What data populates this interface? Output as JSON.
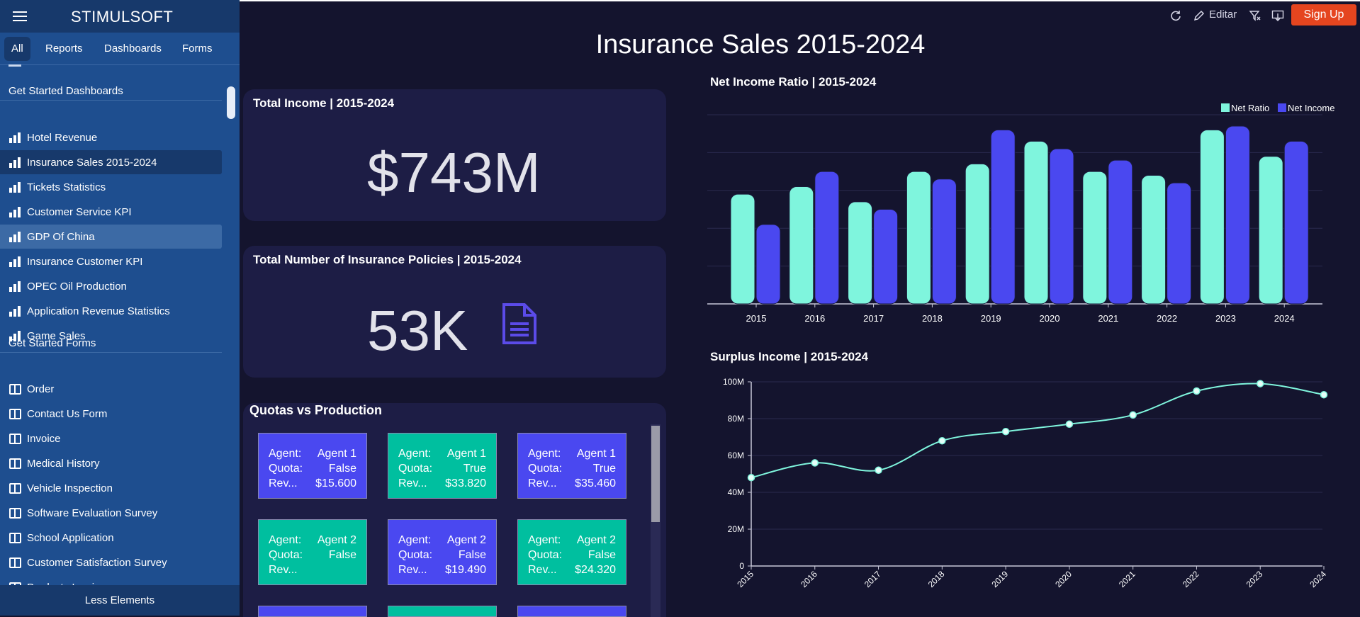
{
  "brand": "STIMULSOFT",
  "sidebar": {
    "tabs": [
      {
        "label": "All"
      },
      {
        "label": "Reports"
      },
      {
        "label": "Dashboards"
      },
      {
        "label": "Forms"
      }
    ],
    "dashboards_heading": "Get Started Dashboards",
    "dashboards": [
      {
        "label": "Hotel Revenue"
      },
      {
        "label": "Insurance Sales 2015-2024"
      },
      {
        "label": "Tickets Statistics"
      },
      {
        "label": "Customer Service KPI"
      },
      {
        "label": "GDP Of China"
      },
      {
        "label": "Insurance Customer KPI"
      },
      {
        "label": "OPEC Oil Production"
      },
      {
        "label": "Application Revenue Statistics"
      },
      {
        "label": "Game Sales"
      }
    ],
    "forms_heading": "Get Started Forms",
    "forms": [
      {
        "label": "Order"
      },
      {
        "label": "Contact Us Form"
      },
      {
        "label": "Invoice"
      },
      {
        "label": "Medical History"
      },
      {
        "label": "Vehicle Inspection"
      },
      {
        "label": "Software Evaluation Survey"
      },
      {
        "label": "School Application"
      },
      {
        "label": "Customer Satisfaction Survey"
      },
      {
        "label": "Products Invoice"
      }
    ],
    "footer_label": "Less Elements"
  },
  "toolbar": {
    "edit_label": "Editar",
    "signup_label": "Sign Up"
  },
  "dashboard": {
    "title": "Insurance Sales 2015-2024",
    "total_income": {
      "title": "Total Income | 2015-2024",
      "value": "$743M"
    },
    "total_policies": {
      "title": "Total Number of Insurance Policies  | 2015-2024",
      "value": "53K"
    },
    "quotas": {
      "title": "Quotas vs Production",
      "labels": {
        "agent": "Agent:",
        "quota": "Quota:",
        "rev": "Rev..."
      },
      "tiles": [
        {
          "agent": "Agent 1",
          "quota": "False",
          "rev": "$15.600",
          "color": "blue"
        },
        {
          "agent": "Agent 1",
          "quota": "True",
          "rev": "$33.820",
          "color": "teal"
        },
        {
          "agent": "Agent 1",
          "quota": "True",
          "rev": "$35.460",
          "color": "blue"
        },
        {
          "agent": "Agent 2",
          "quota": "False",
          "rev": "",
          "color": "teal"
        },
        {
          "agent": "Agent 2",
          "quota": "False",
          "rev": "$19.490",
          "color": "blue"
        },
        {
          "agent": "Agent 2",
          "quota": "False",
          "rev": "$24.320",
          "color": "teal"
        }
      ]
    }
  },
  "chart_data": [
    {
      "type": "bar",
      "title": "Net Income Ratio | 2015-2024",
      "categories": [
        "2015",
        "2016",
        "2017",
        "2018",
        "2019",
        "2020",
        "2021",
        "2022",
        "2023",
        "2024"
      ],
      "series": [
        {
          "name": "Net Ratio",
          "color": "#7ff5dd",
          "values": [
            58,
            62,
            54,
            70,
            74,
            86,
            70,
            68,
            92,
            78
          ]
        },
        {
          "name": "Net Income",
          "color": "#4a48f0",
          "values": [
            42,
            70,
            50,
            66,
            92,
            82,
            76,
            64,
            94,
            86
          ]
        }
      ],
      "ylim": [
        0,
        100
      ],
      "legend": "top-right",
      "grid": true
    },
    {
      "type": "line",
      "title": "Surplus Income | 2015-2024",
      "x": [
        "2015",
        "2016",
        "2017",
        "2018",
        "2019",
        "2020",
        "2021",
        "2022",
        "2023",
        "2024"
      ],
      "y": [
        48000000,
        56000000,
        52000000,
        68000000,
        73000000,
        77000000,
        82000000,
        95000000,
        99000000,
        93000000
      ],
      "yticks": [
        "0",
        "20M",
        "40M",
        "60M",
        "80M",
        "100M"
      ],
      "ylim": [
        0,
        100000000
      ],
      "color": "#7ff5dd",
      "grid": true
    }
  ]
}
